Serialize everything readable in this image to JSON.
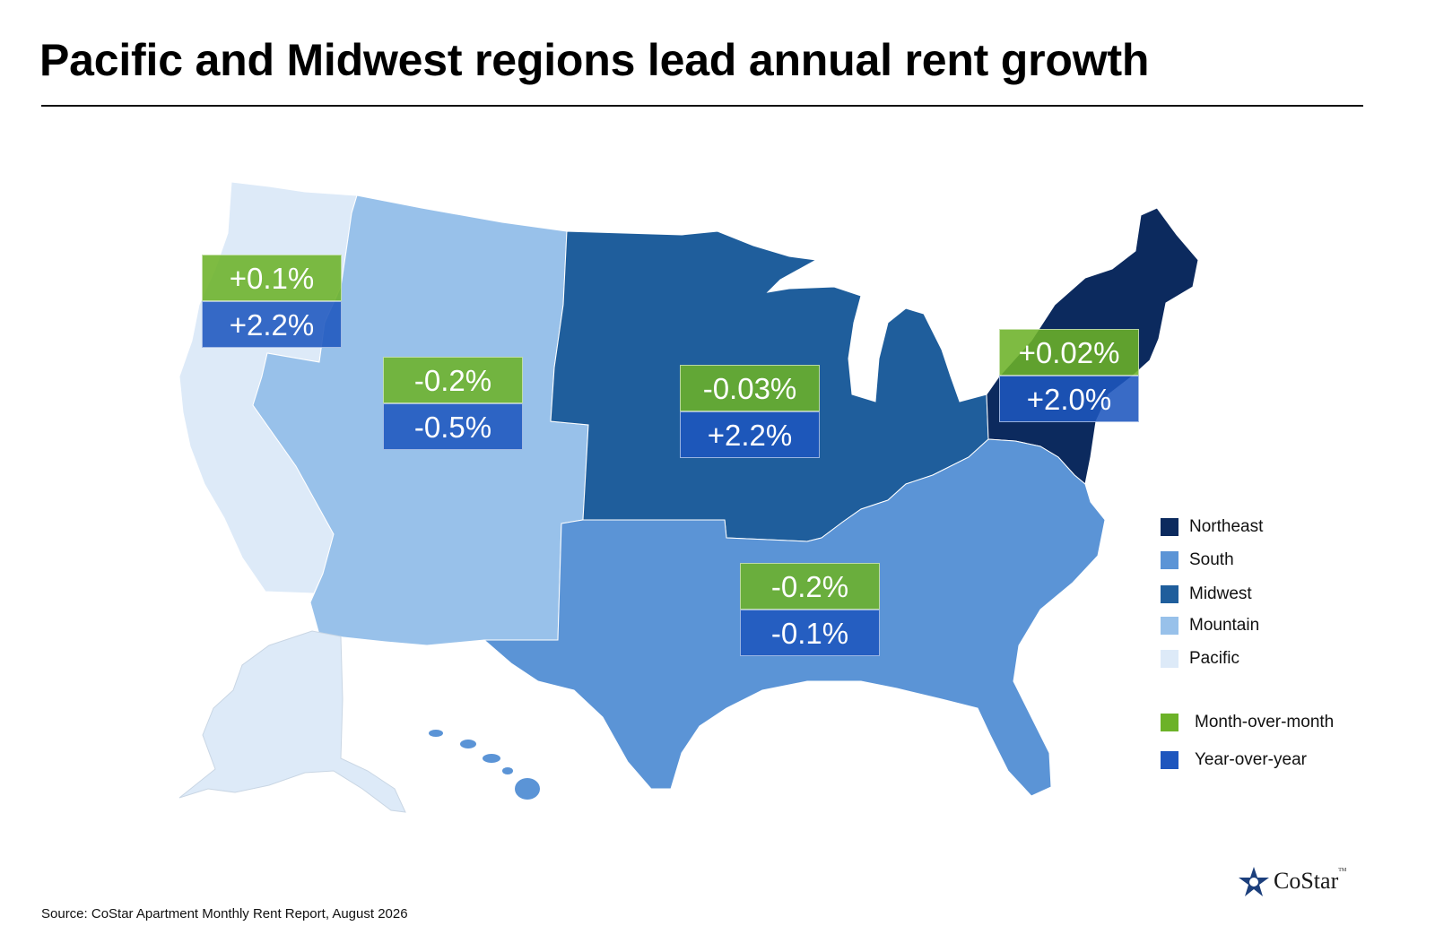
{
  "title": "Pacific and Midwest regions lead annual rent growth",
  "source": "Source: CoStar Apartment Monthly Rent Report, August 2026",
  "brand": {
    "name": "CoStar",
    "tm": "TM"
  },
  "colors": {
    "northeast": "#0c2a5e",
    "south": "#5b94d6",
    "midwest": "#1f5e9c",
    "mountain": "#98c1ea",
    "pacific": "#ddeaf8",
    "month_over_month": "#6cb228",
    "year_over_year": "#1e56be"
  },
  "legend": {
    "regions": [
      {
        "key": "northeast",
        "label": "Northeast"
      },
      {
        "key": "south",
        "label": "South"
      },
      {
        "key": "midwest",
        "label": "Midwest"
      },
      {
        "key": "mountain",
        "label": "Mountain"
      },
      {
        "key": "pacific",
        "label": "Pacific"
      }
    ],
    "metrics": [
      {
        "key": "month_over_month",
        "label": "Month-over-month"
      },
      {
        "key": "year_over_year",
        "label": "Year-over-year"
      }
    ]
  },
  "regions": [
    {
      "key": "pacific",
      "mom": "+0.1%",
      "yoy": "+2.2%"
    },
    {
      "key": "mountain",
      "mom": "-0.2%",
      "yoy": "-0.5%"
    },
    {
      "key": "midwest",
      "mom": "-0.03%",
      "yoy": "+2.2%"
    },
    {
      "key": "northeast",
      "mom": "+0.02%",
      "yoy": "+2.0%"
    },
    {
      "key": "south",
      "mom": "-0.2%",
      "yoy": "-0.1%"
    }
  ]
}
